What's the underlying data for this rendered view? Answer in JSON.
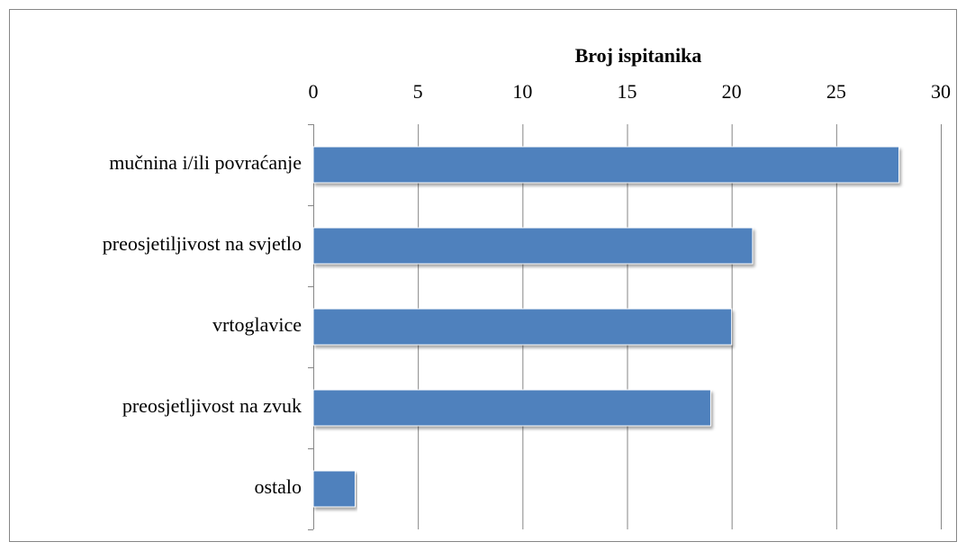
{
  "chart_data": {
    "type": "bar",
    "title": "Broj ispitanika",
    "categories": [
      "mučnina i/ili povraćanje",
      "preosjetiljivost na svjetlo",
      "vrtoglavice",
      "preosjetljivost na zvuk",
      "ostalo"
    ],
    "values": [
      28,
      21,
      20,
      19,
      2
    ],
    "color": "#4f81bd",
    "xlim": [
      0,
      30
    ],
    "xticks": [
      0,
      5,
      10,
      15,
      20,
      25,
      30
    ],
    "grid": true
  }
}
